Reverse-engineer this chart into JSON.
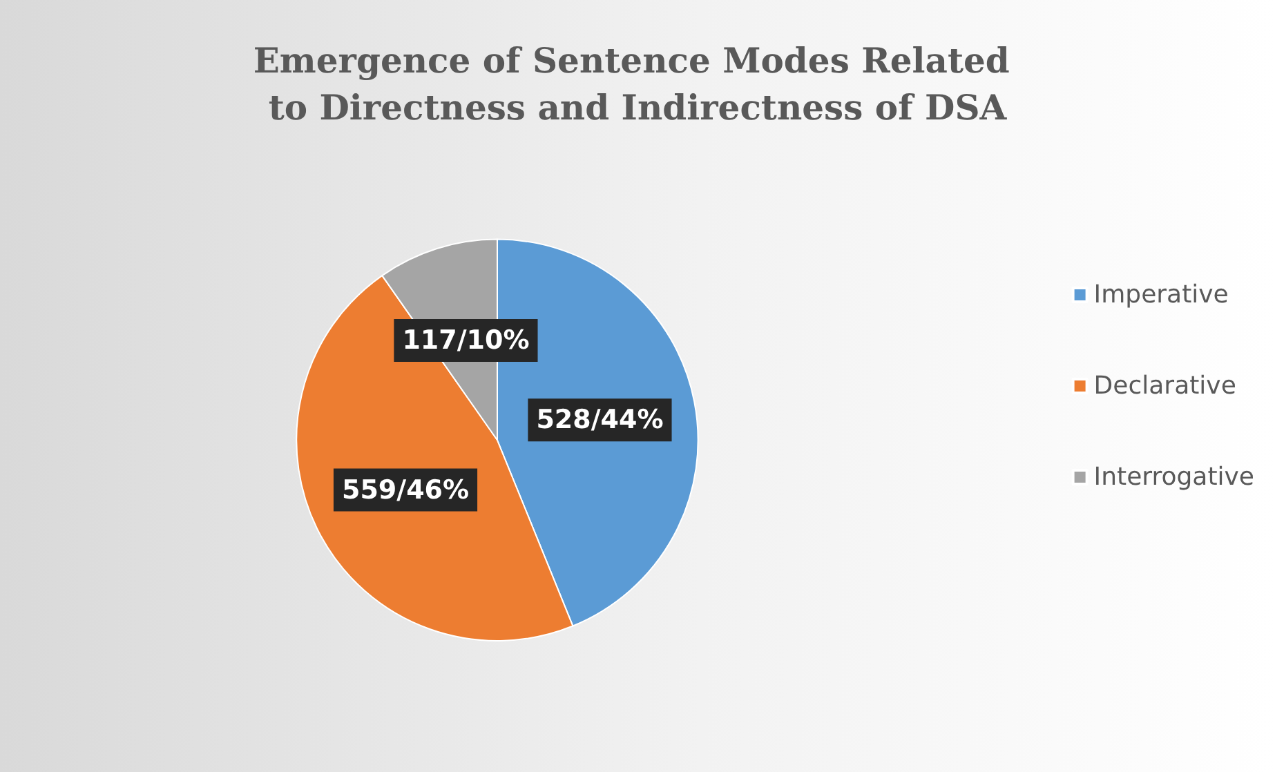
{
  "chart_data": {
    "type": "pie",
    "title": "Emergence of Sentence Modes Related to Directness and Indirectness of DSA",
    "categories": [
      "Imperative",
      "Declarative",
      "Interrogative"
    ],
    "values": [
      528,
      559,
      117
    ],
    "value_labels": [
      "528/44%",
      "559/46%",
      "117/10%"
    ],
    "colors": [
      "#5b9bd5",
      "#ed7d31",
      "#a5a5a5"
    ],
    "legend": "right"
  }
}
